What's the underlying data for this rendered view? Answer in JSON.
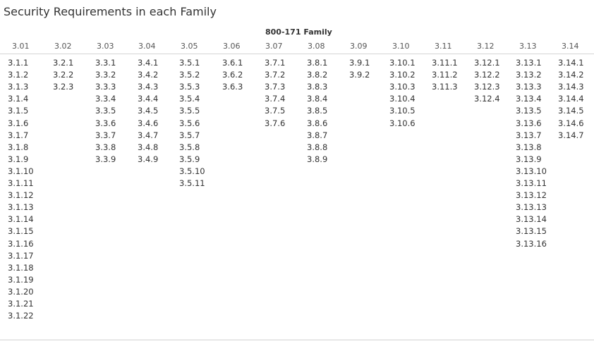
{
  "title": "Security Requirements in each Family",
  "chart_data": {
    "type": "table",
    "title": "Security Requirements in each Family",
    "column_group_label": "800-171 Family",
    "columns": [
      {
        "family": "3.01",
        "items": [
          "3.1.1",
          "3.1.2",
          "3.1.3",
          "3.1.4",
          "3.1.5",
          "3.1.6",
          "3.1.7",
          "3.1.8",
          "3.1.9",
          "3.1.10",
          "3.1.11",
          "3.1.12",
          "3.1.13",
          "3.1.14",
          "3.1.15",
          "3.1.16",
          "3.1.17",
          "3.1.18",
          "3.1.19",
          "3.1.20",
          "3.1.21",
          "3.1.22"
        ]
      },
      {
        "family": "3.02",
        "items": [
          "3.2.1",
          "3.2.2",
          "3.2.3"
        ]
      },
      {
        "family": "3.03",
        "items": [
          "3.3.1",
          "3.3.2",
          "3.3.3",
          "3.3.4",
          "3.3.5",
          "3.3.6",
          "3.3.7",
          "3.3.8",
          "3.3.9"
        ]
      },
      {
        "family": "3.04",
        "items": [
          "3.4.1",
          "3.4.2",
          "3.4.3",
          "3.4.4",
          "3.4.5",
          "3.4.6",
          "3.4.7",
          "3.4.8",
          "3.4.9"
        ]
      },
      {
        "family": "3.05",
        "items": [
          "3.5.1",
          "3.5.2",
          "3.5.3",
          "3.5.4",
          "3.5.5",
          "3.5.6",
          "3.5.7",
          "3.5.8",
          "3.5.9",
          "3.5.10",
          "3.5.11"
        ]
      },
      {
        "family": "3.06",
        "items": [
          "3.6.1",
          "3.6.2",
          "3.6.3"
        ]
      },
      {
        "family": "3.07",
        "items": [
          "3.7.1",
          "3.7.2",
          "3.7.3",
          "3.7.4",
          "3.7.5",
          "3.7.6"
        ]
      },
      {
        "family": "3.08",
        "items": [
          "3.8.1",
          "3.8.2",
          "3.8.3",
          "3.8.4",
          "3.8.5",
          "3.8.6",
          "3.8.7",
          "3.8.8",
          "3.8.9"
        ]
      },
      {
        "family": "3.09",
        "items": [
          "3.9.1",
          "3.9.2"
        ]
      },
      {
        "family": "3.10",
        "items": [
          "3.10.1",
          "3.10.2",
          "3.10.3",
          "3.10.4",
          "3.10.5",
          "3.10.6"
        ]
      },
      {
        "family": "3.11",
        "items": [
          "3.11.1",
          "3.11.2",
          "3.11.3"
        ]
      },
      {
        "family": "3.12",
        "items": [
          "3.12.1",
          "3.12.2",
          "3.12.3",
          "3.12.4"
        ]
      },
      {
        "family": "3.13",
        "items": [
          "3.13.1",
          "3.13.2",
          "3.13.3",
          "3.13.4",
          "3.13.5",
          "3.13.6",
          "3.13.7",
          "3.13.8",
          "3.13.9",
          "3.13.10",
          "3.13.11",
          "3.13.12",
          "3.13.13",
          "3.13.14",
          "3.13.15",
          "3.13.16"
        ]
      },
      {
        "family": "3.14",
        "items": [
          "3.14.1",
          "3.14.2",
          "3.14.3",
          "3.14.4",
          "3.14.5",
          "3.14.6",
          "3.14.7"
        ]
      }
    ]
  }
}
